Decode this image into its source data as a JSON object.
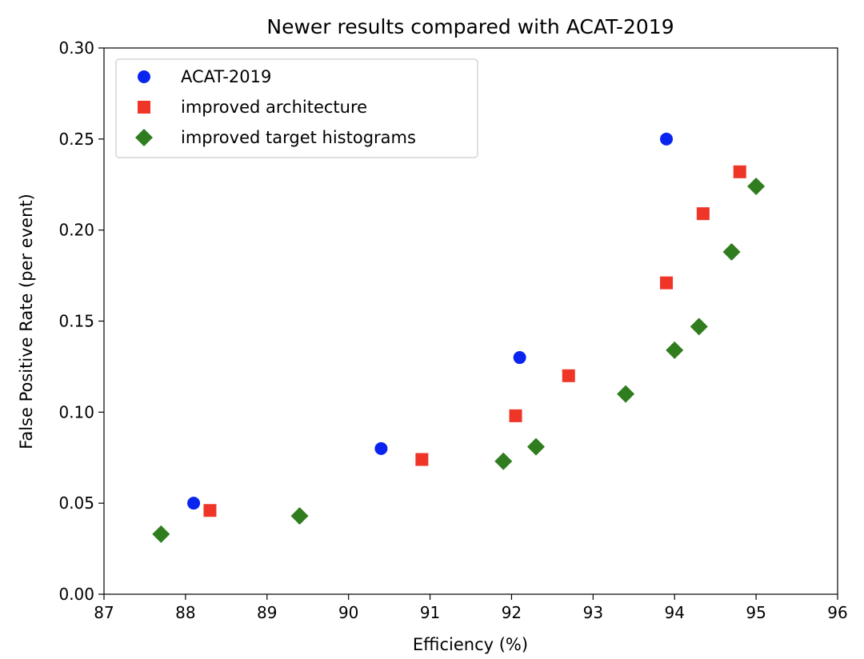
{
  "chart_data": {
    "type": "scatter",
    "title": "Newer results compared with ACAT-2019",
    "xlabel": "Efficiency (%)",
    "ylabel": "False Positive Rate (per event)",
    "xlim": [
      87,
      96
    ],
    "ylim": [
      0.0,
      0.3
    ],
    "xticks": [
      87,
      88,
      89,
      90,
      91,
      92,
      93,
      94,
      95,
      96
    ],
    "xtick_labels": [
      "87",
      "88",
      "89",
      "90",
      "91",
      "92",
      "93",
      "94",
      "95",
      "96"
    ],
    "yticks": [
      0.0,
      0.05,
      0.1,
      0.15,
      0.2,
      0.25,
      0.3
    ],
    "ytick_labels": [
      "0.00",
      "0.05",
      "0.10",
      "0.15",
      "0.20",
      "0.25",
      "0.30"
    ],
    "grid": false,
    "legend_position": "top-left",
    "series": [
      {
        "name": "ACAT-2019",
        "marker": "circle",
        "color": "#0a24f0",
        "points": [
          [
            88.1,
            0.05
          ],
          [
            90.4,
            0.08
          ],
          [
            92.1,
            0.13
          ],
          [
            93.9,
            0.25
          ]
        ]
      },
      {
        "name": "improved architecture",
        "marker": "square",
        "color": "#ee3528",
        "points": [
          [
            88.3,
            0.046
          ],
          [
            90.9,
            0.074
          ],
          [
            92.05,
            0.098
          ],
          [
            92.7,
            0.12
          ],
          [
            93.9,
            0.171
          ],
          [
            94.35,
            0.209
          ],
          [
            94.8,
            0.232
          ]
        ]
      },
      {
        "name": "improved target histograms",
        "marker": "diamond",
        "color": "#2f7d1e",
        "points": [
          [
            87.7,
            0.033
          ],
          [
            89.4,
            0.043
          ],
          [
            91.9,
            0.073
          ],
          [
            92.3,
            0.081
          ],
          [
            93.4,
            0.11
          ],
          [
            94.0,
            0.134
          ],
          [
            94.3,
            0.147
          ],
          [
            94.7,
            0.188
          ],
          [
            95.0,
            0.224
          ]
        ]
      }
    ]
  }
}
